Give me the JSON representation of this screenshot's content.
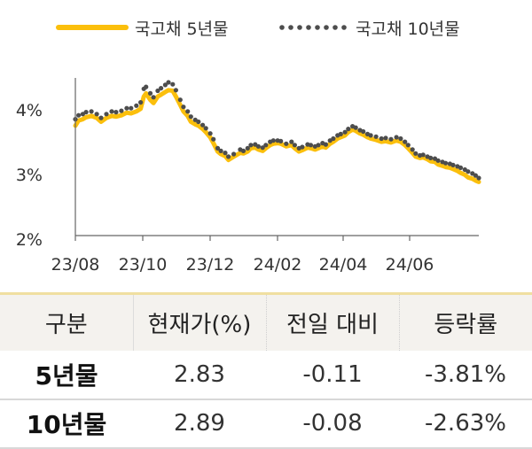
{
  "chart_data": {
    "type": "line",
    "x_ticks": [
      "23/08",
      "23/10",
      "23/12",
      "24/02",
      "24/04",
      "24/06"
    ],
    "y_ticks": [
      "2%",
      "3%",
      "4%"
    ],
    "ylim": [
      2.0,
      4.5
    ],
    "xlim": [
      "2023-08-01",
      "2024-08-12"
    ],
    "grid": false,
    "legend_position": "top",
    "series": [
      {
        "name": "국고채 5년물",
        "style": "solid",
        "color": "#fbbf0c",
        "points": [
          [
            "2023-08-01",
            3.7
          ],
          [
            "2023-08-04",
            3.78
          ],
          [
            "2023-08-08",
            3.8
          ],
          [
            "2023-08-11",
            3.83
          ],
          [
            "2023-08-16",
            3.85
          ],
          [
            "2023-08-21",
            3.82
          ],
          [
            "2023-08-25",
            3.76
          ],
          [
            "2023-08-30",
            3.82
          ],
          [
            "2023-09-04",
            3.85
          ],
          [
            "2023-09-08",
            3.84
          ],
          [
            "2023-09-13",
            3.86
          ],
          [
            "2023-09-18",
            3.9
          ],
          [
            "2023-09-22",
            3.89
          ],
          [
            "2023-09-27",
            3.92
          ],
          [
            "2023-10-01",
            3.96
          ],
          [
            "2023-10-04",
            4.15
          ],
          [
            "2023-10-06",
            4.2
          ],
          [
            "2023-10-10",
            4.1
          ],
          [
            "2023-10-13",
            4.05
          ],
          [
            "2023-10-17",
            4.15
          ],
          [
            "2023-10-20",
            4.18
          ],
          [
            "2023-10-24",
            4.22
          ],
          [
            "2023-10-27",
            4.25
          ],
          [
            "2023-10-31",
            4.24
          ],
          [
            "2023-11-03",
            4.15
          ],
          [
            "2023-11-07",
            4.02
          ],
          [
            "2023-11-10",
            3.92
          ],
          [
            "2023-11-14",
            3.85
          ],
          [
            "2023-11-17",
            3.76
          ],
          [
            "2023-11-21",
            3.72
          ],
          [
            "2023-11-24",
            3.7
          ],
          [
            "2023-11-28",
            3.65
          ],
          [
            "2023-12-01",
            3.6
          ],
          [
            "2023-12-05",
            3.52
          ],
          [
            "2023-12-08",
            3.43
          ],
          [
            "2023-12-12",
            3.3
          ],
          [
            "2023-12-15",
            3.26
          ],
          [
            "2023-12-19",
            3.23
          ],
          [
            "2023-12-22",
            3.17
          ],
          [
            "2023-12-27",
            3.22
          ],
          [
            "2024-01-02",
            3.28
          ],
          [
            "2024-01-05",
            3.27
          ],
          [
            "2024-01-09",
            3.3
          ],
          [
            "2024-01-12",
            3.35
          ],
          [
            "2024-01-16",
            3.36
          ],
          [
            "2024-01-19",
            3.33
          ],
          [
            "2024-01-23",
            3.31
          ],
          [
            "2024-01-26",
            3.35
          ],
          [
            "2024-01-30",
            3.4
          ],
          [
            "2024-02-02",
            3.42
          ],
          [
            "2024-02-06",
            3.43
          ],
          [
            "2024-02-09",
            3.42
          ],
          [
            "2024-02-14",
            3.38
          ],
          [
            "2024-02-19",
            3.4
          ],
          [
            "2024-02-22",
            3.35
          ],
          [
            "2024-02-26",
            3.3
          ],
          [
            "2024-02-29",
            3.32
          ],
          [
            "2024-03-05",
            3.36
          ],
          [
            "2024-03-08",
            3.35
          ],
          [
            "2024-03-12",
            3.33
          ],
          [
            "2024-03-15",
            3.35
          ],
          [
            "2024-03-19",
            3.38
          ],
          [
            "2024-03-22",
            3.36
          ],
          [
            "2024-03-26",
            3.42
          ],
          [
            "2024-03-29",
            3.45
          ],
          [
            "2024-04-02",
            3.5
          ],
          [
            "2024-04-05",
            3.52
          ],
          [
            "2024-04-09",
            3.55
          ],
          [
            "2024-04-12",
            3.6
          ],
          [
            "2024-04-16",
            3.64
          ],
          [
            "2024-04-19",
            3.62
          ],
          [
            "2024-04-23",
            3.58
          ],
          [
            "2024-04-26",
            3.56
          ],
          [
            "2024-04-30",
            3.52
          ],
          [
            "2024-05-03",
            3.5
          ],
          [
            "2024-05-08",
            3.48
          ],
          [
            "2024-05-13",
            3.45
          ],
          [
            "2024-05-17",
            3.46
          ],
          [
            "2024-05-22",
            3.44
          ],
          [
            "2024-05-27",
            3.47
          ],
          [
            "2024-05-31",
            3.45
          ],
          [
            "2024-06-04",
            3.4
          ],
          [
            "2024-06-07",
            3.35
          ],
          [
            "2024-06-11",
            3.28
          ],
          [
            "2024-06-14",
            3.22
          ],
          [
            "2024-06-18",
            3.2
          ],
          [
            "2024-06-21",
            3.21
          ],
          [
            "2024-06-25",
            3.18
          ],
          [
            "2024-06-28",
            3.15
          ],
          [
            "2024-07-02",
            3.14
          ],
          [
            "2024-07-05",
            3.1
          ],
          [
            "2024-07-09",
            3.08
          ],
          [
            "2024-07-12",
            3.06
          ],
          [
            "2024-07-16",
            3.05
          ],
          [
            "2024-07-19",
            3.03
          ],
          [
            "2024-07-23",
            3.0
          ],
          [
            "2024-07-26",
            2.97
          ],
          [
            "2024-07-30",
            2.94
          ],
          [
            "2024-08-02",
            2.9
          ],
          [
            "2024-08-06",
            2.88
          ],
          [
            "2024-08-09",
            2.85
          ],
          [
            "2024-08-12",
            2.83
          ]
        ]
      },
      {
        "name": "국고채 10년물",
        "style": "dotted",
        "color": "#4d4d4d",
        "points": [
          [
            "2023-08-01",
            3.8
          ],
          [
            "2023-08-04",
            3.86
          ],
          [
            "2023-08-08",
            3.88
          ],
          [
            "2023-08-11",
            3.91
          ],
          [
            "2023-08-16",
            3.92
          ],
          [
            "2023-08-21",
            3.88
          ],
          [
            "2023-08-25",
            3.82
          ],
          [
            "2023-08-30",
            3.88
          ],
          [
            "2023-09-04",
            3.92
          ],
          [
            "2023-09-08",
            3.91
          ],
          [
            "2023-09-13",
            3.93
          ],
          [
            "2023-09-18",
            3.97
          ],
          [
            "2023-09-22",
            3.97
          ],
          [
            "2023-09-27",
            4.01
          ],
          [
            "2023-10-01",
            4.06
          ],
          [
            "2023-10-04",
            4.27
          ],
          [
            "2023-10-06",
            4.3
          ],
          [
            "2023-10-10",
            4.2
          ],
          [
            "2023-10-13",
            4.14
          ],
          [
            "2023-10-17",
            4.24
          ],
          [
            "2023-10-20",
            4.28
          ],
          [
            "2023-10-24",
            4.33
          ],
          [
            "2023-10-27",
            4.37
          ],
          [
            "2023-10-31",
            4.34
          ],
          [
            "2023-11-03",
            4.25
          ],
          [
            "2023-11-07",
            4.1
          ],
          [
            "2023-11-10",
            3.99
          ],
          [
            "2023-11-14",
            3.92
          ],
          [
            "2023-11-17",
            3.84
          ],
          [
            "2023-11-21",
            3.79
          ],
          [
            "2023-11-24",
            3.76
          ],
          [
            "2023-11-28",
            3.71
          ],
          [
            "2023-12-01",
            3.66
          ],
          [
            "2023-12-05",
            3.58
          ],
          [
            "2023-12-08",
            3.49
          ],
          [
            "2023-12-12",
            3.35
          ],
          [
            "2023-12-15",
            3.31
          ],
          [
            "2023-12-19",
            3.28
          ],
          [
            "2023-12-22",
            3.22
          ],
          [
            "2023-12-27",
            3.26
          ],
          [
            "2024-01-02",
            3.33
          ],
          [
            "2024-01-05",
            3.31
          ],
          [
            "2024-01-09",
            3.35
          ],
          [
            "2024-01-12",
            3.4
          ],
          [
            "2024-01-16",
            3.41
          ],
          [
            "2024-01-19",
            3.38
          ],
          [
            "2024-01-23",
            3.36
          ],
          [
            "2024-01-26",
            3.4
          ],
          [
            "2024-01-30",
            3.45
          ],
          [
            "2024-02-02",
            3.47
          ],
          [
            "2024-02-06",
            3.47
          ],
          [
            "2024-02-09",
            3.46
          ],
          [
            "2024-02-14",
            3.42
          ],
          [
            "2024-02-19",
            3.45
          ],
          [
            "2024-02-22",
            3.4
          ],
          [
            "2024-02-26",
            3.35
          ],
          [
            "2024-02-29",
            3.37
          ],
          [
            "2024-03-05",
            3.41
          ],
          [
            "2024-03-08",
            3.4
          ],
          [
            "2024-03-12",
            3.38
          ],
          [
            "2024-03-15",
            3.4
          ],
          [
            "2024-03-19",
            3.43
          ],
          [
            "2024-03-22",
            3.41
          ],
          [
            "2024-03-26",
            3.47
          ],
          [
            "2024-03-29",
            3.5
          ],
          [
            "2024-04-02",
            3.55
          ],
          [
            "2024-04-05",
            3.57
          ],
          [
            "2024-04-09",
            3.6
          ],
          [
            "2024-04-12",
            3.65
          ],
          [
            "2024-04-16",
            3.69
          ],
          [
            "2024-04-19",
            3.67
          ],
          [
            "2024-04-23",
            3.63
          ],
          [
            "2024-04-26",
            3.61
          ],
          [
            "2024-04-30",
            3.57
          ],
          [
            "2024-05-03",
            3.55
          ],
          [
            "2024-05-08",
            3.53
          ],
          [
            "2024-05-13",
            3.5
          ],
          [
            "2024-05-17",
            3.51
          ],
          [
            "2024-05-22",
            3.49
          ],
          [
            "2024-05-27",
            3.52
          ],
          [
            "2024-05-31",
            3.5
          ],
          [
            "2024-06-04",
            3.45
          ],
          [
            "2024-06-07",
            3.4
          ],
          [
            "2024-06-11",
            3.33
          ],
          [
            "2024-06-14",
            3.27
          ],
          [
            "2024-06-18",
            3.24
          ],
          [
            "2024-06-21",
            3.25
          ],
          [
            "2024-06-25",
            3.22
          ],
          [
            "2024-06-28",
            3.2
          ],
          [
            "2024-07-02",
            3.19
          ],
          [
            "2024-07-05",
            3.16
          ],
          [
            "2024-07-09",
            3.14
          ],
          [
            "2024-07-12",
            3.12
          ],
          [
            "2024-07-16",
            3.11
          ],
          [
            "2024-07-19",
            3.09
          ],
          [
            "2024-07-23",
            3.07
          ],
          [
            "2024-07-26",
            3.05
          ],
          [
            "2024-07-30",
            3.02
          ],
          [
            "2024-08-02",
            2.99
          ],
          [
            "2024-08-06",
            2.96
          ],
          [
            "2024-08-09",
            2.93
          ],
          [
            "2024-08-12",
            2.89
          ]
        ]
      }
    ]
  },
  "table": {
    "headers": [
      "구분",
      "현재가(%)",
      "전일 대비",
      "등락률"
    ],
    "rows": [
      [
        "5년물",
        "2.83",
        "-0.11",
        "-3.81%"
      ],
      [
        "10년물",
        "2.89",
        "-0.08",
        "-2.63%"
      ]
    ]
  }
}
